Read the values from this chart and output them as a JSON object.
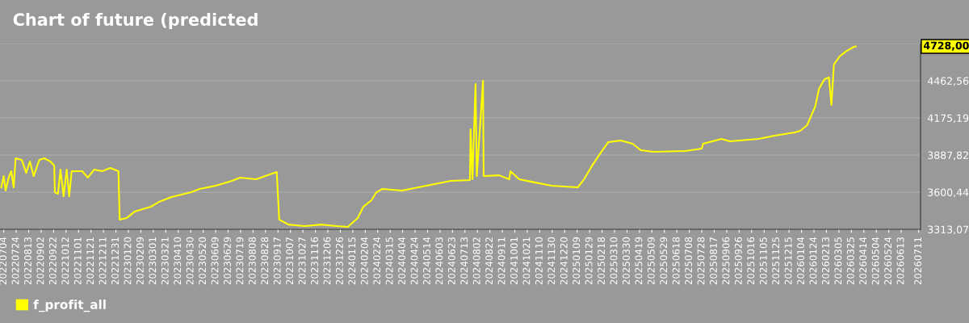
{
  "chart_data": {
    "type": "line",
    "title": "Chart of future (predicted",
    "x": [
      "2022-06-30",
      "2022-07-04",
      "2022-07-07",
      "2022-07-12",
      "2022-07-16",
      "2022-07-20",
      "2022-07-23",
      "2022-08-02",
      "2022-08-09",
      "2022-08-15",
      "2022-08-21",
      "2022-08-30",
      "2022-09-07",
      "2022-09-17",
      "2022-09-23",
      "2022-09-24",
      "2022-09-29",
      "2022-10-03",
      "2022-10-08",
      "2022-10-13",
      "2022-10-17",
      "2022-10-21",
      "2022-11-07",
      "2022-11-16",
      "2022-11-26",
      "2022-12-09",
      "2022-12-22",
      "2023-01-04",
      "2023-01-06",
      "2023-01-17",
      "2023-01-30",
      "2023-02-25",
      "2023-03-10",
      "2023-03-30",
      "2023-05-01",
      "2023-05-14",
      "2023-06-09",
      "2023-07-05",
      "2023-07-18",
      "2023-08-13",
      "2023-09-15",
      "2023-09-19",
      "2023-10-04",
      "2023-10-30",
      "2023-11-25",
      "2023-12-21",
      "2024-01-07",
      "2024-01-23",
      "2024-02-01",
      "2024-02-14",
      "2024-02-22",
      "2024-03-02",
      "2024-04-03",
      "2024-04-29",
      "2024-05-25",
      "2024-06-20",
      "2024-07-21",
      "2024-07-22",
      "2024-07-25",
      "2024-07-30",
      "2024-08-01",
      "2024-08-11",
      "2024-08-12",
      "2024-09-06",
      "2024-09-22",
      "2024-09-24",
      "2024-10-08",
      "2024-10-28",
      "2024-11-29",
      "2025-01-10",
      "2025-01-20",
      "2025-02-02",
      "2025-02-15",
      "2025-02-28",
      "2025-03-20",
      "2025-04-08",
      "2025-04-21",
      "2025-05-11",
      "2025-07-02",
      "2025-07-28",
      "2025-07-30",
      "2025-08-29",
      "2025-09-11",
      "2025-10-27",
      "2025-11-22",
      "2025-12-24",
      "2026-01-02",
      "2026-01-13",
      "2026-01-26",
      "2026-02-01",
      "2026-02-10",
      "2026-02-17",
      "2026-02-21",
      "2026-02-25",
      "2026-03-06",
      "2026-03-16",
      "2026-03-29",
      "2026-04-01"
    ],
    "series": [
      {
        "name": "f_profit_all",
        "color": "#ffff00",
        "values": [
          3638,
          3725,
          3613,
          3713,
          3763,
          3638,
          3863,
          3850,
          3750,
          3838,
          3725,
          3850,
          3863,
          3838,
          3806,
          3600,
          3588,
          3775,
          3569,
          3775,
          3569,
          3763,
          3763,
          3713,
          3775,
          3763,
          3788,
          3763,
          3388,
          3400,
          3450,
          3488,
          3525,
          3563,
          3600,
          3625,
          3650,
          3688,
          3713,
          3700,
          3756,
          3388,
          3350,
          3338,
          3350,
          3338,
          3332,
          3400,
          3488,
          3538,
          3600,
          3625,
          3613,
          3638,
          3663,
          3688,
          3694,
          4088,
          3700,
          4438,
          3725,
          4463,
          3725,
          3731,
          3700,
          3763,
          3700,
          3681,
          3650,
          3638,
          3700,
          3806,
          3900,
          3988,
          4000,
          3975,
          3925,
          3913,
          3919,
          3938,
          3975,
          4013,
          3994,
          4013,
          4038,
          4063,
          4075,
          4119,
          4263,
          4400,
          4475,
          4488,
          4275,
          4588,
          4650,
          4688,
          4725,
          4728
        ]
      }
    ],
    "xlim": [
      "2022-06-28",
      "2026-07-14"
    ],
    "xticks": [
      {
        "value": "2022-07-04",
        "label": "20220704"
      },
      {
        "value": "2022-07-24",
        "label": "20220724"
      },
      {
        "value": "2022-08-13",
        "label": "20220813"
      },
      {
        "value": "2022-09-02",
        "label": "20220902"
      },
      {
        "value": "2022-09-22",
        "label": "20220922"
      },
      {
        "value": "2022-10-12",
        "label": "20221012"
      },
      {
        "value": "2022-11-01",
        "label": "20221101"
      },
      {
        "value": "2022-11-21",
        "label": "20221121"
      },
      {
        "value": "2022-12-11",
        "label": "20221211"
      },
      {
        "value": "2022-12-31",
        "label": "20221231"
      },
      {
        "value": "2023-01-20",
        "label": "20230120"
      },
      {
        "value": "2023-02-09",
        "label": "20230209"
      },
      {
        "value": "2023-03-01",
        "label": "20230301"
      },
      {
        "value": "2023-03-21",
        "label": "20230321"
      },
      {
        "value": "2023-04-10",
        "label": "20230410"
      },
      {
        "value": "2023-04-30",
        "label": "20230430"
      },
      {
        "value": "2023-05-20",
        "label": "20230520"
      },
      {
        "value": "2023-06-09",
        "label": "20230609"
      },
      {
        "value": "2023-06-29",
        "label": "20230629"
      },
      {
        "value": "2023-07-19",
        "label": "20230719"
      },
      {
        "value": "2023-08-08",
        "label": "20230808"
      },
      {
        "value": "2023-08-28",
        "label": "20230828"
      },
      {
        "value": "2023-09-17",
        "label": "20230917"
      },
      {
        "value": "2023-10-07",
        "label": "20231007"
      },
      {
        "value": "2023-10-27",
        "label": "20231027"
      },
      {
        "value": "2023-11-16",
        "label": "20231116"
      },
      {
        "value": "2023-12-06",
        "label": "20231206"
      },
      {
        "value": "2023-12-26",
        "label": "20231226"
      },
      {
        "value": "2024-01-15",
        "label": "20240115"
      },
      {
        "value": "2024-02-04",
        "label": "20240204"
      },
      {
        "value": "2024-02-24",
        "label": "20240224"
      },
      {
        "value": "2024-03-15",
        "label": "20240315"
      },
      {
        "value": "2024-04-04",
        "label": "20240404"
      },
      {
        "value": "2024-04-24",
        "label": "20240424"
      },
      {
        "value": "2024-05-14",
        "label": "20240514"
      },
      {
        "value": "2024-06-03",
        "label": "20240603"
      },
      {
        "value": "2024-06-23",
        "label": "20240623"
      },
      {
        "value": "2024-07-13",
        "label": "20240713"
      },
      {
        "value": "2024-08-02",
        "label": "20240802"
      },
      {
        "value": "2024-08-22",
        "label": "20240822"
      },
      {
        "value": "2024-09-11",
        "label": "20240911"
      },
      {
        "value": "2024-10-01",
        "label": "20241001"
      },
      {
        "value": "2024-10-21",
        "label": "20241021"
      },
      {
        "value": "2024-11-10",
        "label": "20241110"
      },
      {
        "value": "2024-11-30",
        "label": "20241130"
      },
      {
        "value": "2024-12-20",
        "label": "20241220"
      },
      {
        "value": "2025-01-09",
        "label": "20250109"
      },
      {
        "value": "2025-01-29",
        "label": "20250129"
      },
      {
        "value": "2025-02-18",
        "label": "20250218"
      },
      {
        "value": "2025-03-10",
        "label": "20250310"
      },
      {
        "value": "2025-03-30",
        "label": "20250330"
      },
      {
        "value": "2025-04-19",
        "label": "20250419"
      },
      {
        "value": "2025-05-09",
        "label": "20250509"
      },
      {
        "value": "2025-05-29",
        "label": "20250529"
      },
      {
        "value": "2025-06-18",
        "label": "20250618"
      },
      {
        "value": "2025-07-08",
        "label": "20250708"
      },
      {
        "value": "2025-07-28",
        "label": "20250728"
      },
      {
        "value": "2025-08-17",
        "label": "20250817"
      },
      {
        "value": "2025-09-06",
        "label": "20250906"
      },
      {
        "value": "2025-09-26",
        "label": "20250926"
      },
      {
        "value": "2025-10-16",
        "label": "20251016"
      },
      {
        "value": "2025-11-05",
        "label": "20251105"
      },
      {
        "value": "2025-11-25",
        "label": "20251125"
      },
      {
        "value": "2025-12-15",
        "label": "20251215"
      },
      {
        "value": "2026-01-04",
        "label": "20260104"
      },
      {
        "value": "2026-01-24",
        "label": "20260124"
      },
      {
        "value": "2026-02-13",
        "label": "20260213"
      },
      {
        "value": "2026-03-05",
        "label": "20260305"
      },
      {
        "value": "2026-03-25",
        "label": "20260325"
      },
      {
        "value": "2026-04-14",
        "label": "20260414"
      },
      {
        "value": "2026-05-04",
        "label": "20260504"
      },
      {
        "value": "2026-05-24",
        "label": "20260524"
      },
      {
        "value": "2026-06-13",
        "label": "20260613"
      },
      {
        "value": "2026-07-11",
        "label": "20260711"
      }
    ],
    "ylim": [
      3313.07,
      4749.94
    ],
    "yticks": [
      {
        "value": 3313.07,
        "label": "3313,07"
      },
      {
        "value": 3600.44,
        "label": "3600,44"
      },
      {
        "value": 3887.82,
        "label": "3887,82"
      },
      {
        "value": 4175.19,
        "label": "4175,19"
      },
      {
        "value": 4462.56,
        "label": "4462,56"
      },
      {
        "value": 4749.94,
        "label": null
      }
    ],
    "annotations": [
      "4728,00"
    ],
    "grid": "y",
    "legend": "bottom left"
  }
}
